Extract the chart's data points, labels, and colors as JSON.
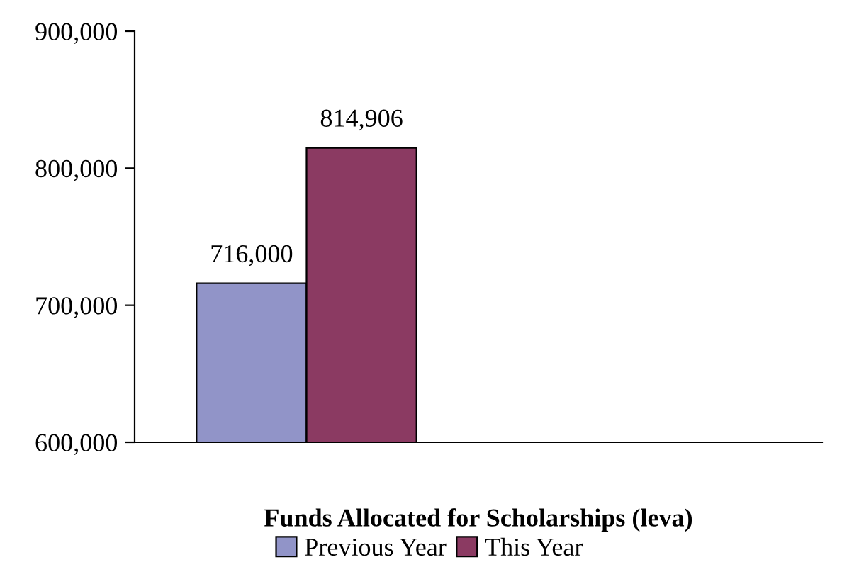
{
  "chart_data": {
    "type": "bar",
    "xlabel": "Funds Allocated for Scholarships (leva)",
    "categories": [
      null,
      null
    ],
    "series": [
      {
        "name": "Previous Year",
        "color": "#9194c8",
        "values": [
          716000,
          null
        ],
        "value_labels": [
          "716,000",
          null
        ]
      },
      {
        "name": "This Year",
        "color": "#8b3a62",
        "values": [
          814906,
          null
        ],
        "value_labels": [
          "814,906",
          null
        ]
      }
    ],
    "ylim": [
      600000,
      900000
    ],
    "yticks": [
      {
        "value": 600000,
        "label": "600,000"
      },
      {
        "value": 700000,
        "label": "700,000"
      },
      {
        "value": 800000,
        "label": "800,000"
      },
      {
        "value": 900000,
        "label": "900,000"
      }
    ],
    "grid": false,
    "legend": "bottom"
  }
}
